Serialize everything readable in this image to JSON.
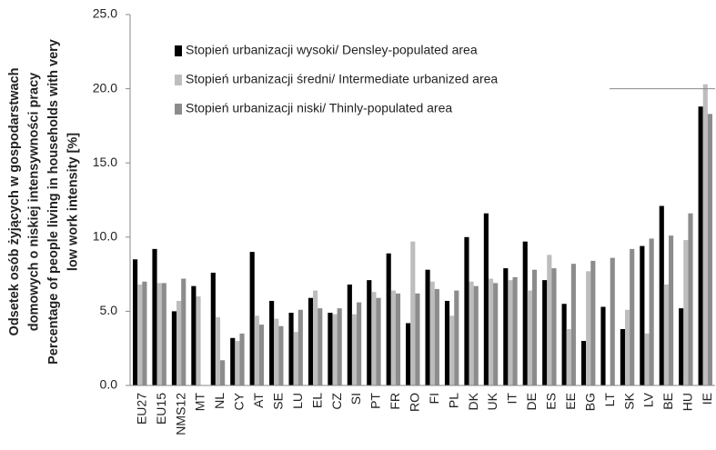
{
  "chart_data": {
    "type": "bar",
    "ylabel_lines": [
      "Odsetek osób żyjących w gospodarstwach",
      "domowych o niskiej intensywności pracy",
      "Percentage of people living in households with very",
      "low work intensity [%]"
    ],
    "categories": [
      "EU27",
      "EU15",
      "NMS12",
      "MT",
      "NL",
      "CY",
      "AT",
      "SE",
      "LU",
      "EL",
      "CZ",
      "SI",
      "PT",
      "FR",
      "RO",
      "FI",
      "PL",
      "DK",
      "UK",
      "IT",
      "DE",
      "ES",
      "EE",
      "BG",
      "LT",
      "SK",
      "LV",
      "BE",
      "HU",
      "IE"
    ],
    "series": [
      {
        "name": "Stopień urbanizacji wysoki/ Densley-populated area",
        "color": "#000000",
        "values": [
          8.5,
          9.2,
          5.0,
          6.7,
          7.6,
          3.2,
          9.0,
          5.7,
          4.9,
          5.9,
          4.9,
          6.8,
          7.1,
          8.9,
          4.2,
          7.8,
          5.7,
          10.0,
          11.6,
          7.9,
          9.7,
          7.1,
          5.5,
          3.0,
          5.3,
          3.8,
          9.4,
          12.1,
          5.2,
          18.8
        ]
      },
      {
        "name": "Stopień urbanizacji średni/ Intermediate urbanized area",
        "color": "#bdbdbd",
        "values": [
          6.8,
          6.9,
          5.7,
          6.0,
          4.6,
          3.0,
          4.7,
          4.5,
          3.6,
          6.4,
          4.8,
          4.8,
          6.3,
          6.4,
          9.7,
          7.0,
          4.7,
          7.0,
          7.2,
          7.1,
          6.4,
          8.8,
          3.8,
          7.7,
          null,
          5.1,
          3.5,
          6.8,
          9.8,
          20.3
        ]
      },
      {
        "name": "Stopień urbanizacji niski/ Thinly-populated area",
        "color": "#8c8c8c",
        "values": [
          7.0,
          6.9,
          7.2,
          null,
          1.7,
          3.5,
          4.1,
          4.0,
          5.1,
          5.2,
          5.2,
          5.6,
          5.9,
          6.2,
          6.2,
          6.5,
          6.4,
          6.7,
          6.9,
          7.3,
          7.8,
          7.9,
          8.2,
          8.4,
          8.6,
          9.2,
          9.9,
          10.1,
          11.6,
          18.3
        ]
      }
    ],
    "ylim": [
      0,
      25
    ],
    "yticks": [
      {
        "value": 0,
        "label": "0.0"
      },
      {
        "value": 5,
        "label": "5.0"
      },
      {
        "value": 10,
        "label": "10.0"
      },
      {
        "value": 15,
        "label": "15.0"
      },
      {
        "value": 20,
        "label": "20.0"
      },
      {
        "value": 25,
        "label": "25.0"
      }
    ],
    "legend": "upper left"
  }
}
